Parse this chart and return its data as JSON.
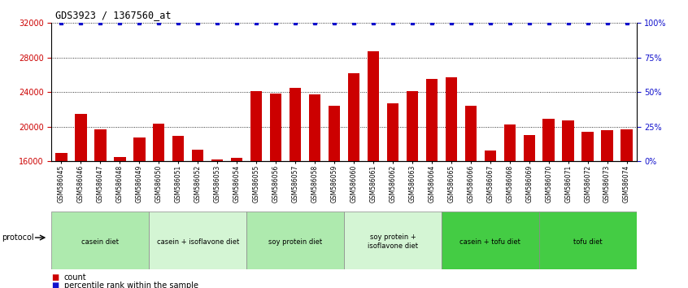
{
  "title": "GDS3923 / 1367560_at",
  "samples": [
    "GSM586045",
    "GSM586046",
    "GSM586047",
    "GSM586048",
    "GSM586049",
    "GSM586050",
    "GSM586051",
    "GSM586052",
    "GSM586053",
    "GSM586054",
    "GSM586055",
    "GSM586056",
    "GSM586057",
    "GSM586058",
    "GSM586059",
    "GSM586060",
    "GSM586061",
    "GSM586062",
    "GSM586063",
    "GSM586064",
    "GSM586065",
    "GSM586066",
    "GSM586067",
    "GSM586068",
    "GSM586069",
    "GSM586070",
    "GSM586071",
    "GSM586072",
    "GSM586073",
    "GSM586074"
  ],
  "counts": [
    17000,
    21500,
    19700,
    16500,
    18800,
    20400,
    18900,
    17300,
    16200,
    16400,
    24100,
    23800,
    24500,
    23700,
    22400,
    26200,
    28700,
    22700,
    24100,
    25500,
    25700,
    22400,
    17200,
    20300,
    19000,
    20900,
    20700,
    19400,
    19600,
    19700
  ],
  "bar_color": "#cc0000",
  "percentile_color": "#1111cc",
  "ylim_left": [
    16000,
    32000
  ],
  "ylim_right": [
    0,
    100
  ],
  "yticks_left": [
    16000,
    20000,
    24000,
    28000,
    32000
  ],
  "yticks_right": [
    0,
    25,
    50,
    75,
    100
  ],
  "groups": [
    {
      "label": "casein diet",
      "start": 0,
      "end": 5,
      "color": "#aeeaae"
    },
    {
      "label": "casein + isoflavone diet",
      "start": 5,
      "end": 10,
      "color": "#d4f5d4"
    },
    {
      "label": "soy protein diet",
      "start": 10,
      "end": 15,
      "color": "#aeeaae"
    },
    {
      "label": "soy protein +\nisoflavone diet",
      "start": 15,
      "end": 20,
      "color": "#d4f5d4"
    },
    {
      "label": "casein + tofu diet",
      "start": 20,
      "end": 25,
      "color": "#44cc44"
    },
    {
      "label": "tofu diet",
      "start": 25,
      "end": 30,
      "color": "#44cc44"
    }
  ],
  "protocol_label": "protocol",
  "legend_count_label": "count",
  "legend_percentile_label": "percentile rank within the sample"
}
